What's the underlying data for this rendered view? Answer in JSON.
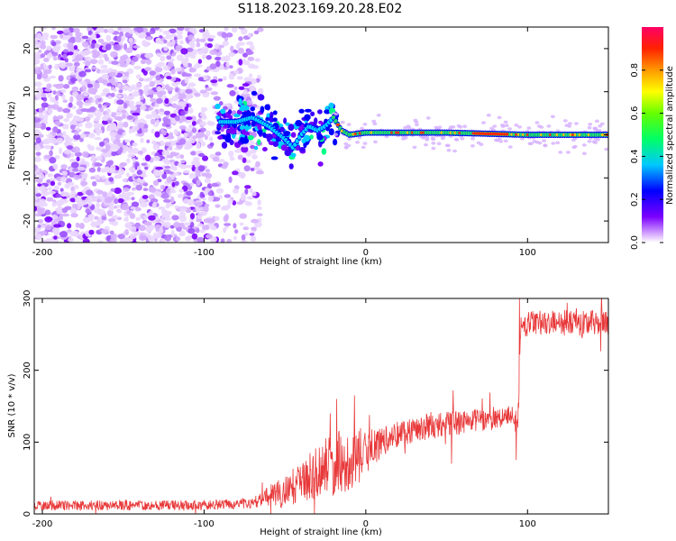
{
  "figure_title": "S118.2023.169.20.28.E02",
  "colors": {
    "snr_line": "#e8393a",
    "frame": "#000000",
    "spectrogram_low": "#7a00ff",
    "spectrogram_high": "#ff0055"
  },
  "chart_data": [
    {
      "type": "heatmap",
      "name": "spectrogram",
      "title": "",
      "xlabel": "Height of straight line (km)",
      "ylabel": "Frequency (Hz)",
      "xlim": [
        -205,
        150
      ],
      "ylim": [
        -25,
        25
      ],
      "xticks": [
        -200,
        -100,
        0,
        100
      ],
      "yticks": [
        -20,
        -10,
        0,
        10,
        20
      ],
      "colorbar": {
        "label": "Normalized spectral amplitude",
        "range": [
          0,
          1
        ],
        "ticks": [
          0.0,
          0.2,
          0.4,
          0.6,
          0.8
        ],
        "colormap": "hsv-rainbow (purple → blue → cyan → green → yellow → orange → red)"
      },
      "signal_ridge": {
        "description": "noise-dominated scatter for x < -60 km; dispersed signal between -90 and -20 km; narrow persistent line near 0 Hz for x > -20 km",
        "center_frequency_hz": [
          {
            "x": -90,
            "f": 3
          },
          {
            "x": -80,
            "f": 3
          },
          {
            "x": -70,
            "f": 4
          },
          {
            "x": -60,
            "f": 2
          },
          {
            "x": -50,
            "f": -1
          },
          {
            "x": -45,
            "f": -3
          },
          {
            "x": -40,
            "f": 0
          },
          {
            "x": -35,
            "f": 2
          },
          {
            "x": -30,
            "f": 1
          },
          {
            "x": -25,
            "f": 2
          },
          {
            "x": -20,
            "f": 4
          },
          {
            "x": -15,
            "f": 1
          },
          {
            "x": -10,
            "f": 0
          },
          {
            "x": 0,
            "f": 0.5
          },
          {
            "x": 50,
            "f": 0.5
          },
          {
            "x": 100,
            "f": 0
          },
          {
            "x": 150,
            "f": 0
          }
        ]
      }
    },
    {
      "type": "line",
      "name": "snr",
      "title": "",
      "xlabel": "Height of straight line (km)",
      "ylabel": "SNR (10 * v/v)",
      "xlim": [
        -205,
        150
      ],
      "ylim": [
        0,
        300
      ],
      "xticks": [
        -200,
        -100,
        0,
        100
      ],
      "yticks": [
        0,
        100,
        200,
        300
      ],
      "series": [
        {
          "points": [
            {
              "x": -205,
              "y": 12
            },
            {
              "x": -150,
              "y": 12
            },
            {
              "x": -100,
              "y": 12
            },
            {
              "x": -70,
              "y": 15
            },
            {
              "x": -60,
              "y": 25
            },
            {
              "x": -50,
              "y": 30
            },
            {
              "x": -40,
              "y": 45
            },
            {
              "x": -30,
              "y": 60
            },
            {
              "x": -20,
              "y": 70
            },
            {
              "x": -10,
              "y": 75
            },
            {
              "x": 0,
              "y": 85
            },
            {
              "x": 10,
              "y": 100
            },
            {
              "x": 20,
              "y": 112
            },
            {
              "x": 30,
              "y": 118
            },
            {
              "x": 40,
              "y": 122
            },
            {
              "x": 50,
              "y": 125
            },
            {
              "x": 60,
              "y": 128
            },
            {
              "x": 70,
              "y": 130
            },
            {
              "x": 80,
              "y": 132
            },
            {
              "x": 90,
              "y": 138
            },
            {
              "x": 94,
              "y": 125
            },
            {
              "x": 96,
              "y": 262
            },
            {
              "x": 110,
              "y": 268
            },
            {
              "x": 130,
              "y": 265
            },
            {
              "x": 150,
              "y": 268
            }
          ],
          "noise_amplitude": [
            {
              "x": -205,
              "a": 7
            },
            {
              "x": -70,
              "a": 7
            },
            {
              "x": -60,
              "a": 15
            },
            {
              "x": -40,
              "a": 30
            },
            {
              "x": -20,
              "a": 45
            },
            {
              "x": -5,
              "a": 40
            },
            {
              "x": 10,
              "a": 20
            },
            {
              "x": 90,
              "a": 14
            },
            {
              "x": 96,
              "a": 18
            },
            {
              "x": 150,
              "a": 18
            }
          ],
          "spikes": [
            {
              "x": -22,
              "y": 140
            },
            {
              "x": -18,
              "y": 160
            },
            {
              "x": -7,
              "y": 165
            },
            {
              "x": 54,
              "y": 172
            },
            {
              "x": 53,
              "y": 70
            },
            {
              "x": 93,
              "y": 75
            },
            {
              "x": 95,
              "y": 300
            }
          ]
        }
      ]
    }
  ]
}
